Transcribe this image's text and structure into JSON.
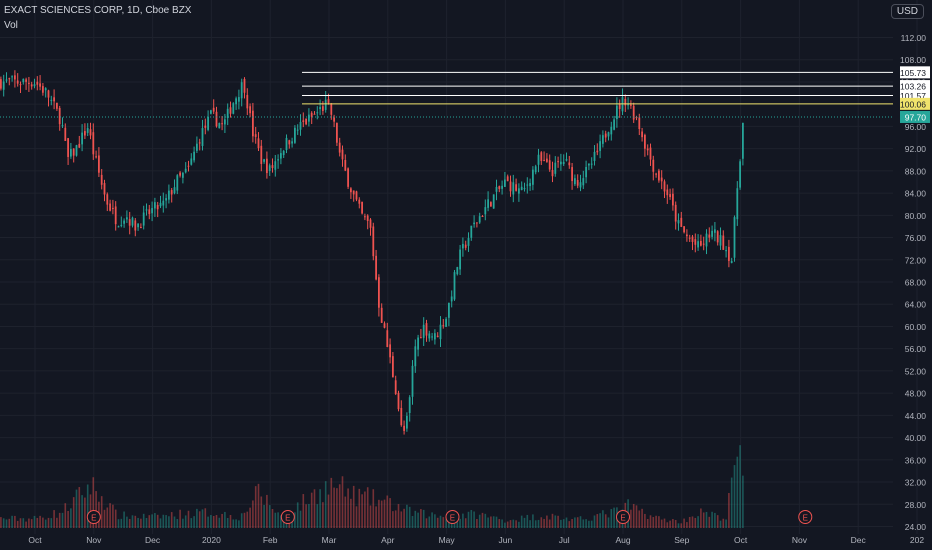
{
  "header": {
    "symbol_title": "EXACT SCIENCES CORP, 1D, Cboe BZX",
    "volume_label": "Vol",
    "currency": "USD"
  },
  "colors": {
    "background": "#131722",
    "up": "#26a69a",
    "down": "#ef5350",
    "grid": "#1e222d",
    "axis_text": "#b2b5be",
    "level_white": "#ffffff",
    "level_yellow": "#f0e36c",
    "last_price": "#26a69a"
  },
  "chart_data": {
    "type": "candlestick",
    "title": "EXACT SCIENCES CORP, 1D, Cboe BZX",
    "ylim": [
      24,
      116
    ],
    "y_ticks": [
      24.0,
      28.0,
      32.0,
      36.0,
      40.0,
      44.0,
      48.0,
      52.0,
      56.0,
      60.0,
      64.0,
      68.0,
      72.0,
      76.0,
      80.0,
      84.0,
      88.0,
      92.0,
      96.0,
      100.0,
      104.0,
      108.0,
      112.0
    ],
    "x_ticks": [
      "Oct",
      "Nov",
      "Dec",
      "2020",
      "Feb",
      "Mar",
      "Apr",
      "May",
      "Jun",
      "Jul",
      "Aug",
      "Sep",
      "Oct",
      "Nov",
      "Dec",
      "202"
    ],
    "price_levels": [
      {
        "value": 105.73,
        "label": "105.73",
        "color": "white"
      },
      {
        "value": 103.26,
        "label": "103.26",
        "color": "white"
      },
      {
        "value": 101.57,
        "label": "101.57",
        "color": "white"
      },
      {
        "value": 100.06,
        "label": "100.06",
        "color": "yellow"
      }
    ],
    "last_price": {
      "value": 97.7,
      "label": "97.70"
    },
    "earnings_markers": [
      {
        "month_index": 1,
        "label": "E"
      },
      {
        "month_index": 4.3,
        "label": "E"
      },
      {
        "month_index": 7.1,
        "label": "E"
      },
      {
        "month_index": 10.0,
        "label": "E"
      },
      {
        "month_index": 13.1,
        "label": "E"
      }
    ],
    "close_path": [
      [
        0.0,
        104
      ],
      [
        0.2,
        102
      ],
      [
        0.45,
        97
      ],
      [
        0.55,
        90
      ],
      [
        0.7,
        92
      ],
      [
        0.9,
        96
      ],
      [
        1.0,
        91
      ],
      [
        1.2,
        83
      ],
      [
        1.4,
        79
      ],
      [
        1.55,
        80
      ],
      [
        1.7,
        78
      ],
      [
        2.0,
        81
      ],
      [
        2.2,
        82
      ],
      [
        2.4,
        86
      ],
      [
        2.6,
        88
      ],
      [
        2.8,
        94
      ],
      [
        3.0,
        98
      ],
      [
        3.2,
        96
      ],
      [
        3.35,
        100
      ],
      [
        3.55,
        104
      ],
      [
        3.7,
        95
      ],
      [
        3.85,
        90
      ],
      [
        4.0,
        88
      ],
      [
        4.2,
        92
      ],
      [
        4.5,
        96
      ],
      [
        4.75,
        98
      ],
      [
        4.95,
        100
      ],
      [
        5.05,
        98
      ],
      [
        5.2,
        90
      ],
      [
        5.4,
        84
      ],
      [
        5.55,
        80
      ],
      [
        5.7,
        78
      ],
      [
        5.85,
        64
      ],
      [
        6.0,
        56
      ],
      [
        6.15,
        48
      ],
      [
        6.25,
        40
      ],
      [
        6.35,
        44
      ],
      [
        6.45,
        56
      ],
      [
        6.6,
        60
      ],
      [
        6.8,
        58
      ],
      [
        7.0,
        62
      ],
      [
        7.2,
        72
      ],
      [
        7.45,
        78
      ],
      [
        7.7,
        82
      ],
      [
        8.0,
        86
      ],
      [
        8.3,
        84
      ],
      [
        8.55,
        90
      ],
      [
        8.8,
        88
      ],
      [
        9.0,
        90
      ],
      [
        9.2,
        86
      ],
      [
        9.4,
        88
      ],
      [
        9.6,
        92
      ],
      [
        9.75,
        96
      ],
      [
        9.95,
        100
      ],
      [
        10.05,
        101
      ],
      [
        10.25,
        97
      ],
      [
        10.4,
        92
      ],
      [
        10.55,
        88
      ],
      [
        10.75,
        84
      ],
      [
        10.95,
        78
      ],
      [
        11.1,
        76
      ],
      [
        11.3,
        74
      ],
      [
        11.5,
        77
      ],
      [
        11.7,
        75
      ],
      [
        11.85,
        72
      ],
      [
        11.95,
        86
      ],
      [
        12.05,
        97.7
      ]
    ],
    "volume_ylim": [
      0,
      1
    ],
    "volume_path": [
      [
        0.0,
        0.12
      ],
      [
        0.45,
        0.2
      ],
      [
        0.95,
        0.55
      ],
      [
        1.4,
        0.16
      ],
      [
        2.0,
        0.14
      ],
      [
        2.5,
        0.18
      ],
      [
        3.0,
        0.2
      ],
      [
        3.5,
        0.14
      ],
      [
        3.8,
        0.45
      ],
      [
        4.2,
        0.14
      ],
      [
        4.9,
        0.5
      ],
      [
        5.1,
        0.55
      ],
      [
        5.4,
        0.42
      ],
      [
        5.7,
        0.38
      ],
      [
        6.0,
        0.32
      ],
      [
        6.4,
        0.2
      ],
      [
        7.0,
        0.14
      ],
      [
        7.5,
        0.18
      ],
      [
        8.0,
        0.1
      ],
      [
        8.7,
        0.16
      ],
      [
        9.2,
        0.1
      ],
      [
        9.95,
        0.22
      ],
      [
        10.1,
        0.28
      ],
      [
        10.6,
        0.12
      ],
      [
        11.0,
        0.08
      ],
      [
        11.3,
        0.2
      ],
      [
        11.75,
        0.12
      ],
      [
        11.95,
        1.0
      ],
      [
        12.05,
        0.55
      ]
    ]
  }
}
